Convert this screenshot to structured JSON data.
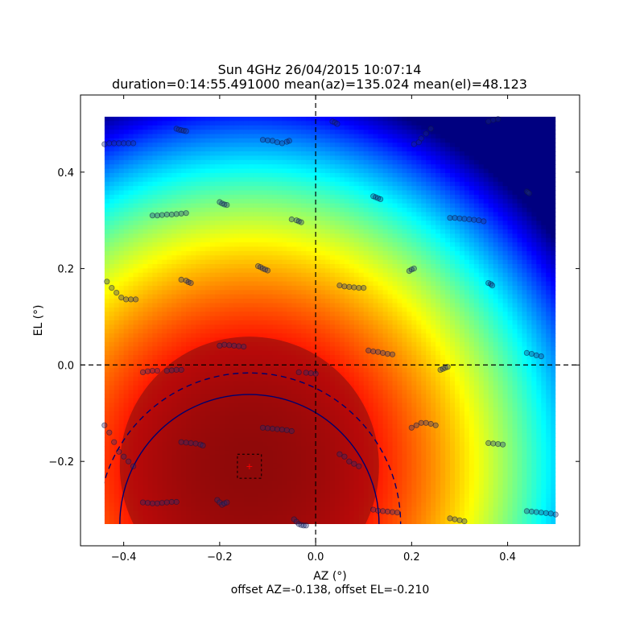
{
  "chart_data": {
    "type": "heatmap",
    "title": "Sun 4GHz 26/04/2015 10:07:14",
    "subtitle": "duration=0:14:55.491000 mean(az)=135.024 mean(el)=48.123",
    "xlabel": "AZ (°)",
    "ylabel": "EL (°)",
    "footer": "offset AZ=-0.138, offset EL=-0.210",
    "xlim": [
      -0.49,
      0.55
    ],
    "ylim": [
      -0.375,
      0.56
    ],
    "x_ticks": [
      -0.4,
      -0.2,
      0.0,
      0.2,
      0.4
    ],
    "x_tick_labels": [
      "−0.4",
      "−0.2",
      "0.0",
      "0.2",
      "0.4"
    ],
    "y_ticks": [
      -0.2,
      0.0,
      0.2,
      0.4
    ],
    "y_tick_labels": [
      "−0.2",
      "0.0",
      "0.2",
      "0.4"
    ],
    "heatmap_extent": {
      "x": [
        -0.44,
        0.5
      ],
      "y": [
        -0.33,
        0.515
      ]
    },
    "colormap": "jet",
    "peak": {
      "az": -0.138,
      "el": -0.21
    },
    "crosshair": {
      "az": 0.0,
      "el": 0.0
    },
    "contours": [
      {
        "style": "solid",
        "center": [
          -0.138,
          -0.33
        ],
        "radius": 0.27
      },
      {
        "style": "dashed",
        "center": [
          -0.138,
          -0.33
        ],
        "radius": 0.315
      }
    ],
    "offset_box": {
      "az": [
        -0.163,
        -0.113
      ],
      "el": [
        -0.235,
        -0.185
      ]
    },
    "scan_samples": [
      [
        [
          -0.44,
          0.458
        ],
        [
          -0.43,
          0.46
        ],
        [
          -0.42,
          0.46
        ],
        [
          -0.41,
          0.46
        ],
        [
          -0.4,
          0.46
        ],
        [
          -0.39,
          0.46
        ],
        [
          -0.38,
          0.46
        ]
      ],
      [
        [
          -0.29,
          0.49
        ],
        [
          -0.285,
          0.488
        ],
        [
          -0.28,
          0.487
        ],
        [
          -0.275,
          0.486
        ],
        [
          -0.27,
          0.485
        ]
      ],
      [
        [
          -0.11,
          0.467
        ],
        [
          -0.1,
          0.466
        ],
        [
          -0.09,
          0.465
        ],
        [
          -0.08,
          0.462
        ],
        [
          -0.07,
          0.46
        ],
        [
          -0.06,
          0.463
        ],
        [
          -0.055,
          0.465
        ]
      ],
      [
        [
          0.035,
          0.505
        ],
        [
          0.04,
          0.503
        ],
        [
          0.045,
          0.5
        ]
      ],
      [
        [
          0.205,
          0.458
        ],
        [
          0.215,
          0.462
        ],
        [
          0.22,
          0.47
        ],
        [
          0.23,
          0.48
        ],
        [
          0.24,
          0.49
        ]
      ],
      [
        [
          0.36,
          0.505
        ],
        [
          0.37,
          0.508
        ],
        [
          0.38,
          0.51
        ]
      ],
      [
        [
          -0.34,
          0.31
        ],
        [
          -0.33,
          0.31
        ],
        [
          -0.32,
          0.311
        ],
        [
          -0.31,
          0.312
        ],
        [
          -0.3,
          0.312
        ],
        [
          -0.29,
          0.313
        ],
        [
          -0.28,
          0.314
        ],
        [
          -0.27,
          0.315
        ]
      ],
      [
        [
          -0.2,
          0.338
        ],
        [
          -0.195,
          0.335
        ],
        [
          -0.19,
          0.333
        ],
        [
          -0.185,
          0.332
        ]
      ],
      [
        [
          -0.05,
          0.302
        ],
        [
          -0.04,
          0.3
        ],
        [
          -0.035,
          0.298
        ],
        [
          -0.03,
          0.296
        ]
      ],
      [
        [
          0.12,
          0.35
        ],
        [
          0.125,
          0.348
        ],
        [
          0.13,
          0.346
        ],
        [
          0.135,
          0.344
        ]
      ],
      [
        [
          0.28,
          0.305
        ],
        [
          0.29,
          0.305
        ],
        [
          0.3,
          0.304
        ],
        [
          0.31,
          0.303
        ],
        [
          0.32,
          0.302
        ],
        [
          0.33,
          0.301
        ],
        [
          0.34,
          0.3
        ],
        [
          0.35,
          0.298
        ]
      ],
      [
        [
          0.44,
          0.36
        ],
        [
          0.442,
          0.358
        ],
        [
          0.445,
          0.356
        ]
      ],
      [
        [
          -0.435,
          0.173
        ],
        [
          -0.425,
          0.16
        ],
        [
          -0.415,
          0.15
        ],
        [
          -0.405,
          0.14
        ],
        [
          -0.395,
          0.136
        ],
        [
          -0.385,
          0.136
        ],
        [
          -0.375,
          0.136
        ]
      ],
      [
        [
          -0.28,
          0.177
        ],
        [
          -0.27,
          0.175
        ],
        [
          -0.265,
          0.172
        ],
        [
          -0.26,
          0.17
        ]
      ],
      [
        [
          -0.12,
          0.205
        ],
        [
          -0.115,
          0.203
        ],
        [
          -0.11,
          0.2
        ],
        [
          -0.105,
          0.198
        ],
        [
          -0.1,
          0.196
        ]
      ],
      [
        [
          0.05,
          0.165
        ],
        [
          0.06,
          0.163
        ],
        [
          0.07,
          0.162
        ],
        [
          0.08,
          0.161
        ],
        [
          0.09,
          0.16
        ],
        [
          0.1,
          0.16
        ]
      ],
      [
        [
          0.195,
          0.195
        ],
        [
          0.2,
          0.198
        ],
        [
          0.205,
          0.2
        ]
      ],
      [
        [
          0.36,
          0.17
        ],
        [
          0.365,
          0.168
        ],
        [
          0.368,
          0.165
        ]
      ],
      [
        [
          -0.36,
          -0.015
        ],
        [
          -0.35,
          -0.013
        ],
        [
          -0.34,
          -0.012
        ],
        [
          -0.33,
          -0.012
        ],
        [
          -0.31,
          -0.012
        ],
        [
          -0.3,
          -0.011
        ],
        [
          -0.29,
          -0.01
        ],
        [
          -0.28,
          -0.01
        ]
      ],
      [
        [
          -0.2,
          0.04
        ],
        [
          -0.19,
          0.042
        ],
        [
          -0.18,
          0.041
        ],
        [
          -0.17,
          0.04
        ],
        [
          -0.16,
          0.039
        ],
        [
          -0.15,
          0.038
        ]
      ],
      [
        [
          -0.035,
          -0.015
        ],
        [
          -0.02,
          -0.016
        ],
        [
          -0.01,
          -0.017
        ],
        [
          0.0,
          -0.018
        ]
      ],
      [
        [
          0.11,
          0.03
        ],
        [
          0.12,
          0.028
        ],
        [
          0.13,
          0.027
        ],
        [
          0.14,
          0.025
        ],
        [
          0.15,
          0.023
        ],
        [
          0.16,
          0.022
        ]
      ],
      [
        [
          0.26,
          -0.01
        ],
        [
          0.265,
          -0.008
        ],
        [
          0.27,
          -0.006
        ],
        [
          0.275,
          -0.004
        ]
      ],
      [
        [
          0.44,
          0.025
        ],
        [
          0.45,
          0.023
        ],
        [
          0.46,
          0.02
        ],
        [
          0.47,
          0.018
        ]
      ],
      [
        [
          -0.44,
          -0.125
        ],
        [
          -0.43,
          -0.14
        ],
        [
          -0.42,
          -0.16
        ],
        [
          -0.41,
          -0.18
        ],
        [
          -0.4,
          -0.19
        ],
        [
          -0.39,
          -0.2
        ],
        [
          -0.38,
          -0.21
        ]
      ],
      [
        [
          -0.28,
          -0.16
        ],
        [
          -0.27,
          -0.161
        ],
        [
          -0.26,
          -0.162
        ],
        [
          -0.25,
          -0.163
        ],
        [
          -0.24,
          -0.165
        ],
        [
          -0.235,
          -0.167
        ]
      ],
      [
        [
          -0.11,
          -0.13
        ],
        [
          -0.1,
          -0.131
        ],
        [
          -0.09,
          -0.132
        ],
        [
          -0.08,
          -0.133
        ],
        [
          -0.07,
          -0.134
        ],
        [
          -0.06,
          -0.135
        ],
        [
          -0.05,
          -0.137
        ]
      ],
      [
        [
          0.05,
          -0.185
        ],
        [
          0.06,
          -0.19
        ],
        [
          0.07,
          -0.2
        ],
        [
          0.08,
          -0.205
        ],
        [
          0.09,
          -0.21
        ]
      ],
      [
        [
          0.2,
          -0.13
        ],
        [
          0.21,
          -0.125
        ],
        [
          0.22,
          -0.12
        ],
        [
          0.23,
          -0.12
        ],
        [
          0.24,
          -0.122
        ],
        [
          0.25,
          -0.125
        ]
      ],
      [
        [
          0.36,
          -0.162
        ],
        [
          0.37,
          -0.163
        ],
        [
          0.38,
          -0.164
        ],
        [
          0.39,
          -0.165
        ]
      ],
      [
        [
          -0.36,
          -0.285
        ],
        [
          -0.35,
          -0.286
        ],
        [
          -0.34,
          -0.287
        ],
        [
          -0.33,
          -0.287
        ],
        [
          -0.32,
          -0.286
        ],
        [
          -0.31,
          -0.285
        ],
        [
          -0.3,
          -0.284
        ],
        [
          -0.29,
          -0.284
        ]
      ],
      [
        [
          -0.205,
          -0.28
        ],
        [
          -0.2,
          -0.285
        ],
        [
          -0.195,
          -0.29
        ],
        [
          -0.19,
          -0.287
        ],
        [
          -0.185,
          -0.285
        ]
      ],
      [
        [
          -0.045,
          -0.32
        ],
        [
          -0.04,
          -0.325
        ],
        [
          -0.035,
          -0.33
        ],
        [
          -0.03,
          -0.332
        ],
        [
          -0.025,
          -0.333
        ],
        [
          -0.02,
          -0.333
        ]
      ],
      [
        [
          0.12,
          -0.3
        ],
        [
          0.13,
          -0.302
        ],
        [
          0.14,
          -0.303
        ],
        [
          0.15,
          -0.304
        ],
        [
          0.16,
          -0.305
        ],
        [
          0.17,
          -0.306
        ]
      ],
      [
        [
          0.28,
          -0.318
        ],
        [
          0.29,
          -0.32
        ],
        [
          0.3,
          -0.322
        ],
        [
          0.31,
          -0.324
        ]
      ],
      [
        [
          0.44,
          -0.303
        ],
        [
          0.45,
          -0.304
        ],
        [
          0.46,
          -0.305
        ],
        [
          0.47,
          -0.306
        ],
        [
          0.48,
          -0.307
        ],
        [
          0.49,
          -0.308
        ],
        [
          0.5,
          -0.31
        ]
      ]
    ]
  }
}
